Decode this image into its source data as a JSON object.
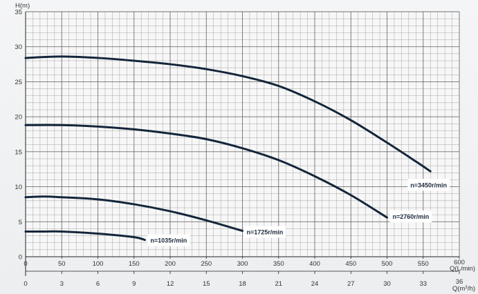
{
  "chart_data": {
    "type": "line",
    "ylabel": "H(m)",
    "xlabel": "Q(L/min)",
    "x2label_base": "Q(m",
    "x2label_sup": "3",
    "x2label_tail": "/h)",
    "xlim": [
      0,
      600
    ],
    "ylim": [
      0,
      35
    ],
    "x2lim": [
      0,
      36
    ],
    "x_ticks": [
      "0",
      "50",
      "100",
      "150",
      "200",
      "250",
      "300",
      "350",
      "400",
      "450",
      "500",
      "550",
      "600"
    ],
    "x2_ticks": [
      "0",
      "3",
      "6",
      "9",
      "12",
      "15",
      "18",
      "21",
      "24",
      "27",
      "30",
      "33",
      "36"
    ],
    "y_ticks": [
      "0",
      "5",
      "10",
      "15",
      "20",
      "25",
      "30",
      "35"
    ],
    "grid": true,
    "colors": {
      "curve": "#13253a",
      "grid": "#606060",
      "label_bg": "#ffffff"
    },
    "series": [
      {
        "name": "n=3450r/min",
        "x": [
          0,
          50,
          100,
          150,
          200,
          250,
          300,
          350,
          400,
          450,
          500,
          540,
          560
        ],
        "y": [
          28.4,
          28.6,
          28.4,
          28.0,
          27.5,
          26.8,
          25.8,
          24.4,
          22.2,
          19.5,
          16.3,
          13.6,
          12.2
        ]
      },
      {
        "name": "n=2760r/min",
        "x": [
          0,
          50,
          100,
          150,
          200,
          250,
          300,
          350,
          400,
          450,
          500
        ],
        "y": [
          18.8,
          18.8,
          18.6,
          18.2,
          17.6,
          16.8,
          15.5,
          13.8,
          11.5,
          8.8,
          5.6
        ]
      },
      {
        "name": "n=1725r/min",
        "x": [
          0,
          25,
          50,
          100,
          150,
          200,
          250,
          300
        ],
        "y": [
          8.5,
          8.6,
          8.5,
          8.2,
          7.5,
          6.5,
          5.2,
          3.7
        ]
      },
      {
        "name": "n=1035r/min",
        "x": [
          0,
          25,
          50,
          100,
          150,
          165
        ],
        "y": [
          3.6,
          3.6,
          3.6,
          3.3,
          2.8,
          2.4
        ]
      }
    ]
  }
}
